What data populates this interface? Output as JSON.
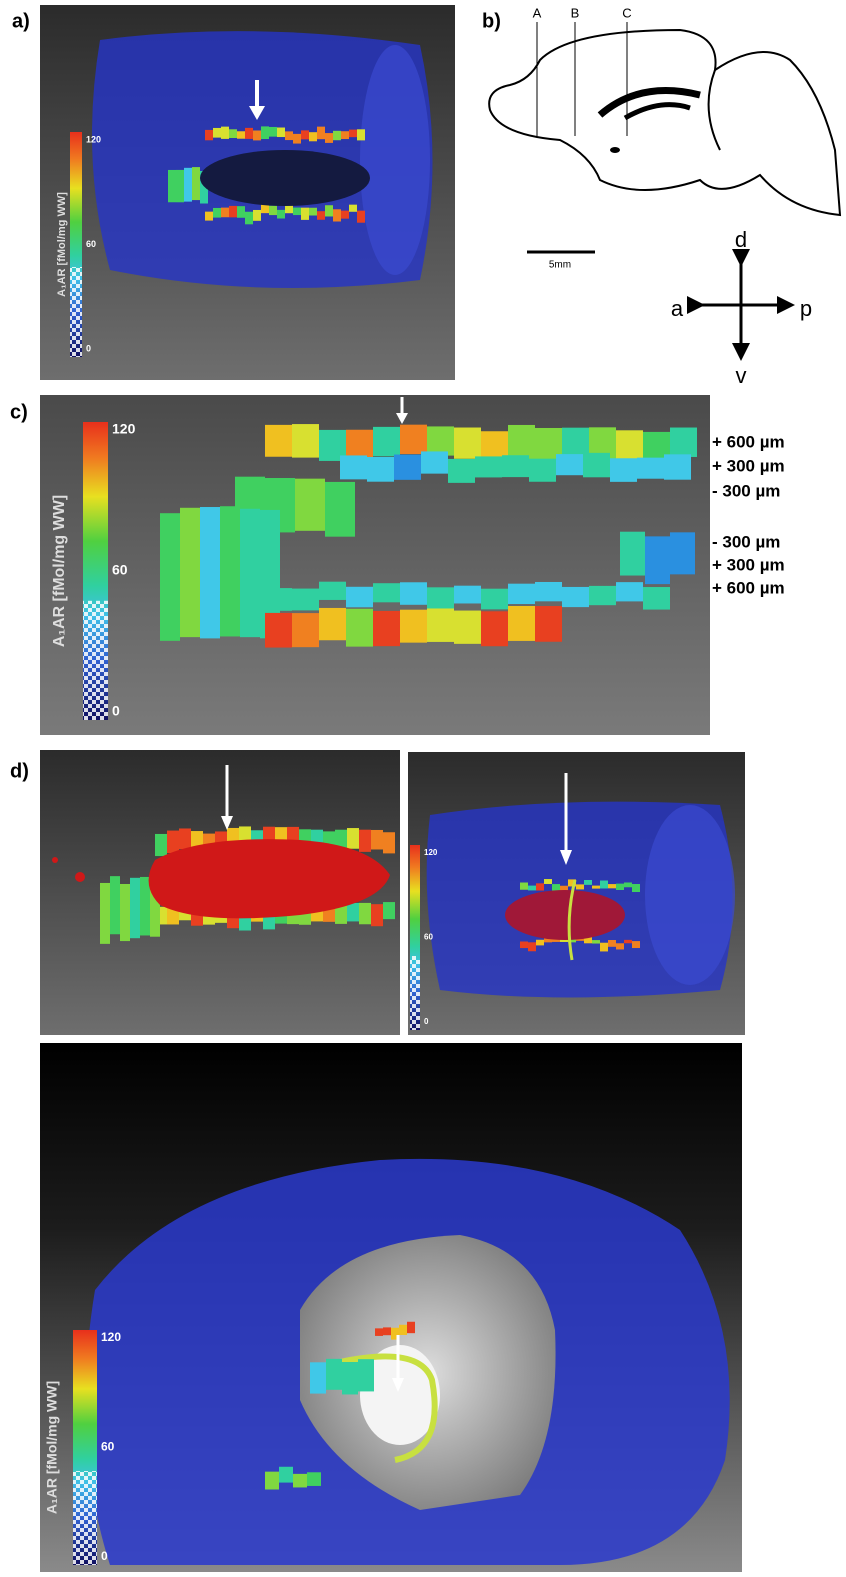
{
  "panel_a": {
    "label": "a)",
    "colorbar": {
      "ticks": [
        "120",
        "60",
        "0"
      ],
      "title": "A₁AR [fMol/mg WW]"
    }
  },
  "panel_b": {
    "label": "b)",
    "section_lines": [
      "A",
      "B",
      "C"
    ],
    "scale_bar": "5mm",
    "compass": {
      "up": "d",
      "left": "a",
      "right": "p",
      "down": "v"
    }
  },
  "panel_c": {
    "label": "c)",
    "colorbar": {
      "ticks": [
        "120",
        "60",
        "0"
      ],
      "title": "A₁AR [fMol/mg WW]"
    },
    "depth_labels": [
      "+ 600 µm",
      "+ 300 µm",
      "-  300 µm",
      "-  300 µm",
      "+ 300 µm",
      "+ 600 µm"
    ]
  },
  "panel_d": {
    "label": "d)",
    "colorbar_small": {
      "ticks": [
        "120",
        "60",
        "0"
      ]
    },
    "colorbar_large": {
      "ticks": [
        "120",
        "60",
        "0"
      ],
      "title": "A₁AR [fMol/mg WW]"
    }
  }
}
